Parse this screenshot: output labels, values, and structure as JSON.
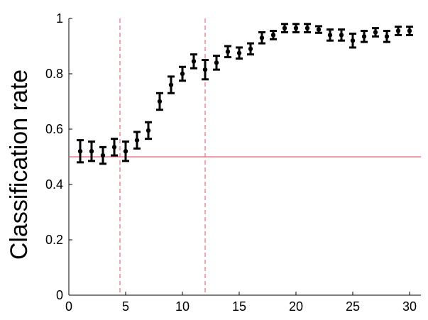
{
  "chart_data": {
    "type": "scatter",
    "title": "",
    "xlabel": "",
    "ylabel": "Classification rate",
    "xlim": [
      0,
      31
    ],
    "ylim": [
      0,
      1
    ],
    "xticks": [
      0,
      5,
      10,
      15,
      20,
      25,
      30
    ],
    "yticks": [
      0,
      0.2,
      0.4,
      0.6,
      0.8,
      1
    ],
    "xtick_labels": [
      "0",
      "5",
      "10",
      "15",
      "20",
      "25",
      "30"
    ],
    "ytick_labels": [
      "0",
      "0.2",
      "0.4",
      "0.6",
      "0.8",
      "1"
    ],
    "grid": false,
    "series": [
      {
        "marker_color": "#000000",
        "points": [
          {
            "x": 1,
            "y": 0.52,
            "err": 0.04
          },
          {
            "x": 2,
            "y": 0.52,
            "err": 0.035
          },
          {
            "x": 3,
            "y": 0.505,
            "err": 0.03
          },
          {
            "x": 4,
            "y": 0.535,
            "err": 0.03
          },
          {
            "x": 5,
            "y": 0.52,
            "err": 0.035
          },
          {
            "x": 6,
            "y": 0.56,
            "err": 0.03
          },
          {
            "x": 7,
            "y": 0.595,
            "err": 0.03
          },
          {
            "x": 8,
            "y": 0.7,
            "err": 0.03
          },
          {
            "x": 9,
            "y": 0.76,
            "err": 0.03
          },
          {
            "x": 10,
            "y": 0.8,
            "err": 0.025
          },
          {
            "x": 11,
            "y": 0.845,
            "err": 0.025
          },
          {
            "x": 12,
            "y": 0.815,
            "err": 0.035
          },
          {
            "x": 13,
            "y": 0.84,
            "err": 0.025
          },
          {
            "x": 14,
            "y": 0.88,
            "err": 0.02
          },
          {
            "x": 15,
            "y": 0.875,
            "err": 0.02
          },
          {
            "x": 16,
            "y": 0.89,
            "err": 0.02
          },
          {
            "x": 17,
            "y": 0.93,
            "err": 0.02
          },
          {
            "x": 18,
            "y": 0.94,
            "err": 0.015
          },
          {
            "x": 19,
            "y": 0.965,
            "err": 0.015
          },
          {
            "x": 20,
            "y": 0.965,
            "err": 0.015
          },
          {
            "x": 21,
            "y": 0.965,
            "err": 0.015
          },
          {
            "x": 22,
            "y": 0.96,
            "err": 0.012
          },
          {
            "x": 23,
            "y": 0.94,
            "err": 0.02
          },
          {
            "x": 24,
            "y": 0.94,
            "err": 0.02
          },
          {
            "x": 25,
            "y": 0.92,
            "err": 0.025
          },
          {
            "x": 26,
            "y": 0.935,
            "err": 0.02
          },
          {
            "x": 27,
            "y": 0.95,
            "err": 0.015
          },
          {
            "x": 28,
            "y": 0.935,
            "err": 0.02
          },
          {
            "x": 29,
            "y": 0.955,
            "err": 0.015
          },
          {
            "x": 30,
            "y": 0.955,
            "err": 0.015
          }
        ]
      }
    ],
    "reference_lines": {
      "horizontal": [
        {
          "y": 0.5,
          "color": "#e8606a",
          "style": "solid"
        }
      ],
      "vertical": [
        {
          "x": 4.5,
          "color": "#f08090",
          "style": "dashed"
        },
        {
          "x": 12,
          "color": "#f08090",
          "style": "dashed"
        }
      ]
    }
  }
}
